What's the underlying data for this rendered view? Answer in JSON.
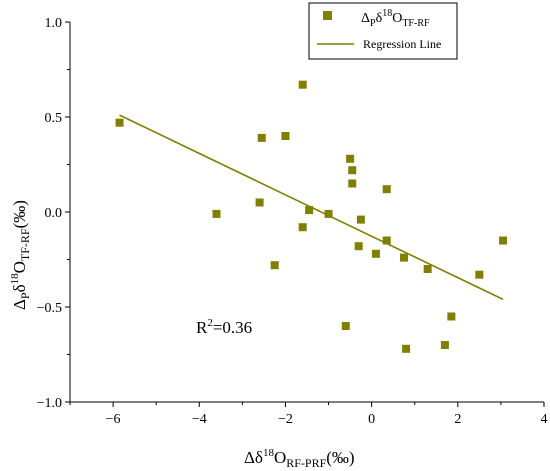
{
  "chart_data": {
    "type": "scatter",
    "xlim": [
      -7,
      4
    ],
    "ylim": [
      -1.0,
      1.0
    ],
    "x_ticks": [
      -6,
      -4,
      -2,
      0,
      2,
      4
    ],
    "y_ticks": [
      -1.0,
      -0.5,
      0.0,
      0.5,
      1.0
    ],
    "x_tick_labels": [
      "−6",
      "−4",
      "−2",
      "0",
      "2",
      "4"
    ],
    "y_tick_labels": [
      "−1.0",
      "−0.5",
      "0.0",
      "0.5",
      "1.0"
    ],
    "xlabel": {
      "main": "Δδ",
      "sup": "18",
      "base": "O",
      "sub": "RF-PRF",
      "unit": "(‰)"
    },
    "ylabel": {
      "main": "Δ",
      "sub1": "P",
      "mid": "δ",
      "sup": "18",
      "base": "O",
      "sub2": "TF-RF",
      "unit": "(‰)"
    },
    "grid": false,
    "legend_position": "top-right",
    "colors": {
      "marker": "#7f7f00",
      "line": "#7f7f00"
    },
    "series": [
      {
        "name": "ΔPδ18OTF-RF",
        "legend": {
          "main": "Δ",
          "sub1": "P",
          "mid": "δ",
          "sup": "18",
          "base": "O",
          "sub2": "TF-RF"
        },
        "kind": "scatter",
        "points": [
          [
            -5.85,
            0.47
          ],
          [
            -3.6,
            -0.01
          ],
          [
            -2.55,
            0.39
          ],
          [
            -2.6,
            0.05
          ],
          [
            -2.25,
            -0.28
          ],
          [
            -2.0,
            0.4
          ],
          [
            -1.6,
            0.67
          ],
          [
            -1.6,
            -0.08
          ],
          [
            -1.45,
            0.01
          ],
          [
            -1.0,
            -0.01
          ],
          [
            -0.6,
            -0.6
          ],
          [
            -0.5,
            0.28
          ],
          [
            -0.45,
            0.22
          ],
          [
            -0.45,
            0.15
          ],
          [
            -0.25,
            -0.04
          ],
          [
            -0.3,
            -0.18
          ],
          [
            0.1,
            -0.22
          ],
          [
            0.35,
            0.12
          ],
          [
            0.35,
            -0.15
          ],
          [
            0.75,
            -0.24
          ],
          [
            0.8,
            -0.72
          ],
          [
            1.3,
            -0.3
          ],
          [
            1.7,
            -0.7
          ],
          [
            1.85,
            -0.55
          ],
          [
            2.5,
            -0.33
          ],
          [
            3.05,
            -0.15
          ]
        ]
      },
      {
        "name": "Regression Line",
        "kind": "line",
        "points": [
          [
            -5.85,
            0.51
          ],
          [
            3.05,
            -0.46
          ]
        ]
      }
    ],
    "annotation": {
      "text": "R",
      "sup": "2",
      "rest": "=0.36",
      "x": -4.0,
      "y": -0.61
    }
  }
}
